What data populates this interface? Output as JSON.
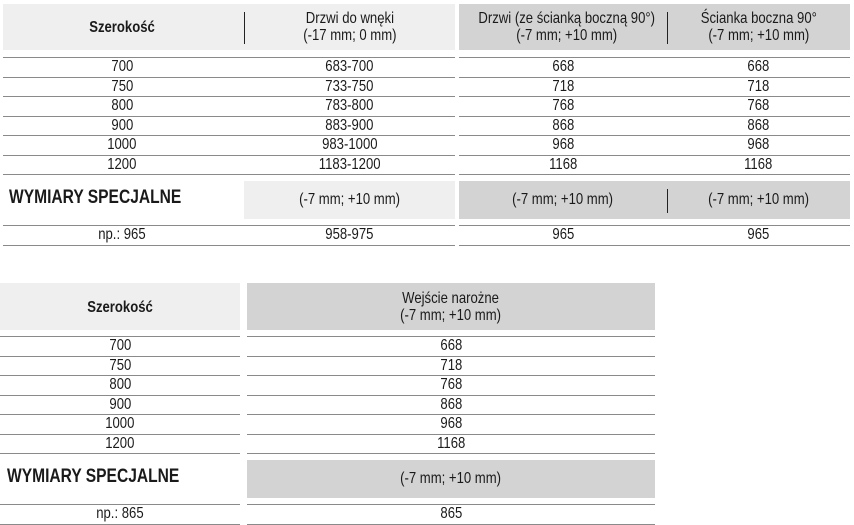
{
  "table_top": {
    "headers": [
      "Szerokość",
      "Drzwi do wnęki\n(-17 mm; 0 mm)",
      "Drzwi (ze ścianką boczną 90°)\n(-7 mm; +10 mm)",
      "Ścianka boczna 90°\n(-7 mm; +10 mm)"
    ],
    "rows": [
      [
        "700",
        "683-700",
        "668",
        "668"
      ],
      [
        "750",
        "733-750",
        "718",
        "718"
      ],
      [
        "800",
        "783-800",
        "768",
        "768"
      ],
      [
        "900",
        "883-900",
        "868",
        "868"
      ],
      [
        "1000",
        "983-1000",
        "968",
        "968"
      ],
      [
        "1200",
        "1183-1200",
        "1168",
        "1168"
      ]
    ],
    "special_label": "WYMIARY SPECJALNE",
    "special_tolerances": [
      "(-7 mm; +10 mm)",
      "(-7 mm; +10 mm)",
      "(-7 mm; +10 mm)"
    ],
    "example": [
      "np.: 965",
      "958-975",
      "965",
      "965"
    ]
  },
  "table_bottom": {
    "headers": [
      "Szerokość",
      "Wejście narożne\n(-7 mm; +10 mm)"
    ],
    "rows": [
      [
        "700",
        "668"
      ],
      [
        "750",
        "718"
      ],
      [
        "800",
        "768"
      ],
      [
        "900",
        "868"
      ],
      [
        "1000",
        "968"
      ],
      [
        "1200",
        "1168"
      ]
    ],
    "special_label": "WYMIARY SPECJALNE",
    "special_tolerances": [
      "(-7 mm; +10 mm)"
    ],
    "example": [
      "np.: 865",
      "865"
    ]
  },
  "colors": {
    "light_gray": "#efefef",
    "dark_gray": "#d3d3d3"
  }
}
